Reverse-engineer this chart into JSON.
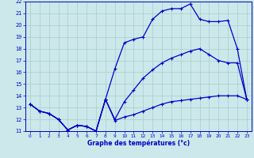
{
  "title": "Graphe des températures (°c)",
  "background_color": "#cce8ea",
  "grid_color": "#aacccc",
  "line_color": "#0000cc",
  "xlim": [
    -0.5,
    23.5
  ],
  "ylim": [
    11,
    22
  ],
  "xticks": [
    0,
    1,
    2,
    3,
    4,
    5,
    6,
    7,
    8,
    9,
    10,
    11,
    12,
    13,
    14,
    15,
    16,
    17,
    18,
    19,
    20,
    21,
    22,
    23
  ],
  "yticks": [
    11,
    12,
    13,
    14,
    15,
    16,
    17,
    18,
    19,
    20,
    21,
    22
  ],
  "line1_x": [
    0,
    1,
    2,
    3,
    4,
    5,
    6,
    7,
    8,
    9,
    10,
    11,
    12,
    13,
    14,
    15,
    16,
    17,
    18,
    19,
    20,
    21,
    22,
    23
  ],
  "line1_y": [
    13.3,
    12.7,
    12.5,
    12.0,
    11.1,
    11.5,
    11.4,
    11.0,
    13.7,
    11.9,
    12.2,
    12.4,
    12.7,
    13.0,
    13.3,
    13.5,
    13.6,
    13.7,
    13.8,
    13.9,
    14.0,
    14.0,
    14.0,
    13.7
  ],
  "line2_x": [
    0,
    1,
    2,
    3,
    4,
    5,
    6,
    7,
    8,
    9,
    10,
    11,
    12,
    13,
    14,
    15,
    16,
    17,
    18,
    19,
    20,
    21,
    22,
    23
  ],
  "line2_y": [
    13.3,
    12.7,
    12.5,
    12.0,
    11.1,
    11.5,
    11.4,
    11.0,
    13.7,
    12.0,
    13.5,
    14.5,
    15.5,
    16.2,
    16.8,
    17.2,
    17.5,
    17.8,
    18.0,
    17.5,
    17.0,
    16.8,
    16.8,
    13.7
  ],
  "line3_x": [
    0,
    1,
    2,
    3,
    4,
    5,
    6,
    7,
    8,
    9,
    10,
    11,
    12,
    13,
    14,
    15,
    16,
    17,
    18,
    19,
    20,
    21,
    22,
    23
  ],
  "line3_y": [
    13.3,
    12.7,
    12.5,
    12.0,
    11.1,
    11.5,
    11.4,
    11.0,
    13.7,
    16.3,
    18.5,
    18.8,
    19.0,
    20.5,
    21.2,
    21.4,
    21.4,
    21.8,
    20.5,
    20.3,
    20.3,
    20.4,
    18.0,
    13.7
  ],
  "marker": "+",
  "markersize": 3.5,
  "linewidth": 0.9
}
